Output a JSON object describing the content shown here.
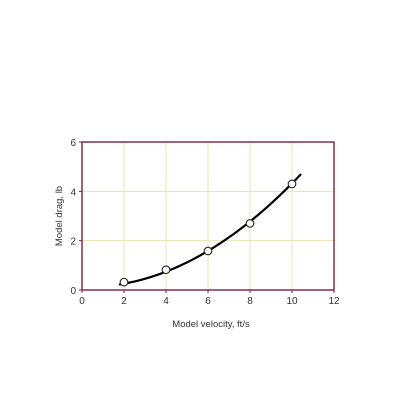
{
  "chart_data": {
    "type": "scatter",
    "xlabel": "Model velocity, ft/s",
    "ylabel": "Model drag, lb",
    "xlim": [
      0,
      12
    ],
    "ylim": [
      0,
      6
    ],
    "xticks": [
      0,
      2,
      4,
      6,
      8,
      10,
      12
    ],
    "yticks": [
      0,
      2,
      4,
      6
    ],
    "grid": true,
    "points": [
      {
        "x": 2,
        "y": 0.32
      },
      {
        "x": 4,
        "y": 0.82
      },
      {
        "x": 6,
        "y": 1.58
      },
      {
        "x": 8,
        "y": 2.7
      },
      {
        "x": 10,
        "y": 4.3
      }
    ],
    "fit_curve": {
      "x_range": [
        1.8,
        10.4
      ],
      "coefficients": [
        0.12,
        -0.02,
        0.044
      ]
    },
    "colors": {
      "frame": "#7a1f3d",
      "grid": "#e6e0a8",
      "curve": "#000000",
      "marker_fill": "#ffffff",
      "marker_stroke": "#333333"
    }
  }
}
